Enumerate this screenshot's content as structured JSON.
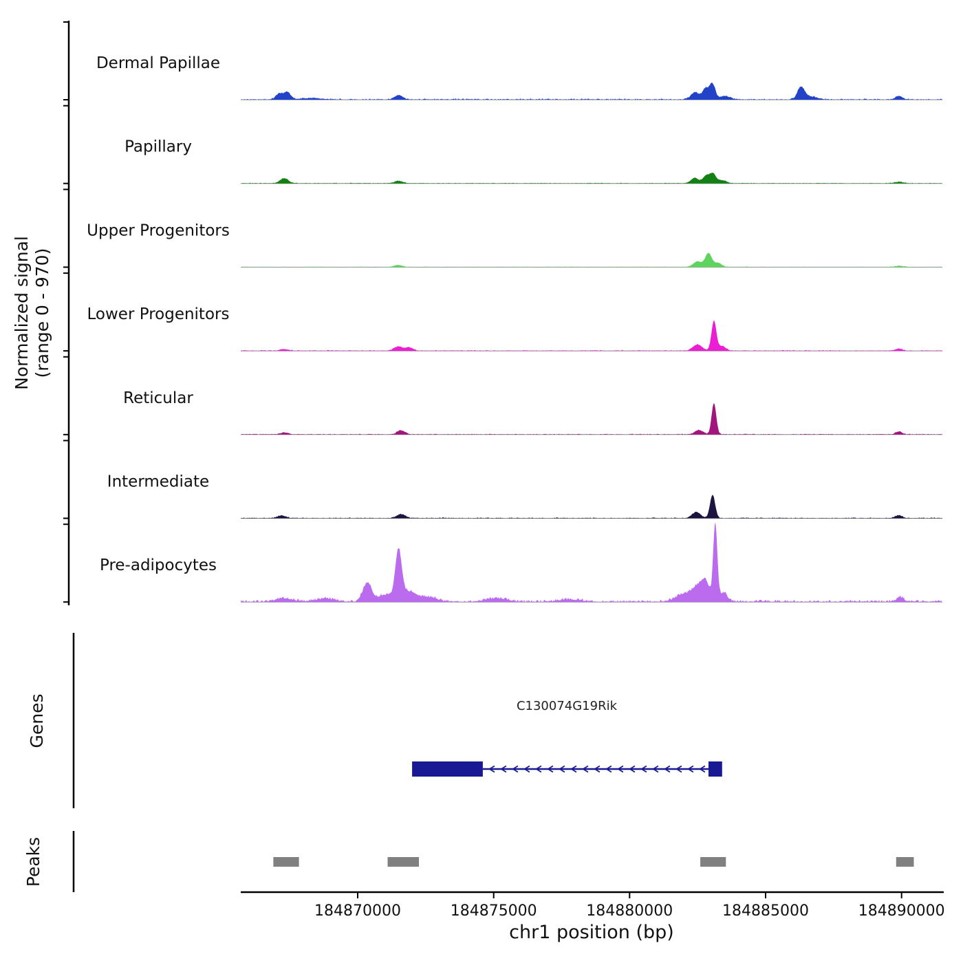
{
  "chart_data": {
    "type": "area",
    "description": "Genome browser: normalized signal tracks over chr1 region with gene model and called peaks",
    "x_axis": {
      "label": "chr1 position (bp)",
      "domain": [
        184865700,
        184891500
      ],
      "ticks": [
        184870000,
        184875000,
        184880000,
        184885000,
        184890000
      ]
    },
    "y_axis": {
      "label_line1": "Normalized signal",
      "label_line2": "(range 0 - 970)",
      "range": [
        0,
        970
      ]
    },
    "tracks": [
      {
        "name": "Dermal Papillae",
        "color": "#2243c8",
        "noise": 16,
        "peaks": [
          [
            184867100,
            120,
            70
          ],
          [
            184867400,
            130,
            95
          ],
          [
            184868300,
            400,
            18
          ],
          [
            184871500,
            150,
            55
          ],
          [
            184882400,
            150,
            90
          ],
          [
            184882800,
            120,
            140
          ],
          [
            184883050,
            100,
            190
          ],
          [
            184883500,
            200,
            45
          ],
          [
            184886300,
            130,
            150
          ],
          [
            184886650,
            250,
            40
          ],
          [
            184889900,
            130,
            45
          ]
        ]
      },
      {
        "name": "Papillary",
        "color": "#128012",
        "noise": 9,
        "peaks": [
          [
            184867300,
            150,
            65
          ],
          [
            184871500,
            150,
            30
          ],
          [
            184882400,
            140,
            70
          ],
          [
            184882800,
            110,
            90
          ],
          [
            184883050,
            120,
            125
          ],
          [
            184883400,
            150,
            40
          ],
          [
            184889900,
            150,
            18
          ]
        ]
      },
      {
        "name": "Upper Progenitors",
        "color": "#5ed45e",
        "noise": 8,
        "peaks": [
          [
            184871500,
            150,
            25
          ],
          [
            184882500,
            160,
            70
          ],
          [
            184882900,
            120,
            175
          ],
          [
            184883250,
            130,
            55
          ],
          [
            184889900,
            150,
            15
          ]
        ]
      },
      {
        "name": "Lower Progenitors",
        "color": "#ea1fd3",
        "noise": 11,
        "peaks": [
          [
            184867300,
            150,
            20
          ],
          [
            184871500,
            160,
            55
          ],
          [
            184871900,
            130,
            40
          ],
          [
            184882500,
            170,
            80
          ],
          [
            184883100,
            90,
            380
          ],
          [
            184883400,
            130,
            60
          ],
          [
            184889900,
            120,
            28
          ]
        ]
      },
      {
        "name": "Reticular",
        "color": "#a3157e",
        "noise": 11,
        "peaks": [
          [
            184867300,
            150,
            25
          ],
          [
            184871600,
            150,
            50
          ],
          [
            184882550,
            150,
            55
          ],
          [
            184883100,
            85,
            400
          ],
          [
            184889900,
            120,
            35
          ]
        ]
      },
      {
        "name": "Intermediate",
        "color": "#1d1440",
        "noise": 11,
        "peaks": [
          [
            184867200,
            150,
            35
          ],
          [
            184871600,
            160,
            50
          ],
          [
            184882450,
            160,
            75
          ],
          [
            184883050,
            95,
            300
          ],
          [
            184889900,
            130,
            35
          ]
        ]
      },
      {
        "name": "Pre-adipocytes",
        "color": "#bb6bee",
        "noise": 30,
        "peaks": [
          [
            184867300,
            300,
            45
          ],
          [
            184868800,
            350,
            40
          ],
          [
            184870350,
            160,
            240
          ],
          [
            184871000,
            250,
            90
          ],
          [
            184871500,
            120,
            640
          ],
          [
            184871900,
            250,
            130
          ],
          [
            184872600,
            300,
            60
          ],
          [
            184875100,
            350,
            45
          ],
          [
            184877800,
            400,
            30
          ],
          [
            184882000,
            300,
            100
          ],
          [
            184882500,
            200,
            170
          ],
          [
            184882800,
            150,
            230
          ],
          [
            184883150,
            75,
            970
          ],
          [
            184883450,
            150,
            110
          ],
          [
            184889950,
            130,
            60
          ]
        ]
      }
    ],
    "gene_track": {
      "label": "Genes",
      "genes": [
        {
          "name": "C130074G19Rik",
          "strand": "-",
          "exons": [
            [
              184872000,
              184874600
            ],
            [
              184882900,
              184883400
            ]
          ],
          "color": "#191994"
        }
      ]
    },
    "peak_track": {
      "label": "Peaks",
      "color": "#808080",
      "regions": [
        [
          184866900,
          184867840
        ],
        [
          184871100,
          184872250
        ],
        [
          184882600,
          184883540
        ],
        [
          184889800,
          184890450
        ]
      ]
    }
  }
}
